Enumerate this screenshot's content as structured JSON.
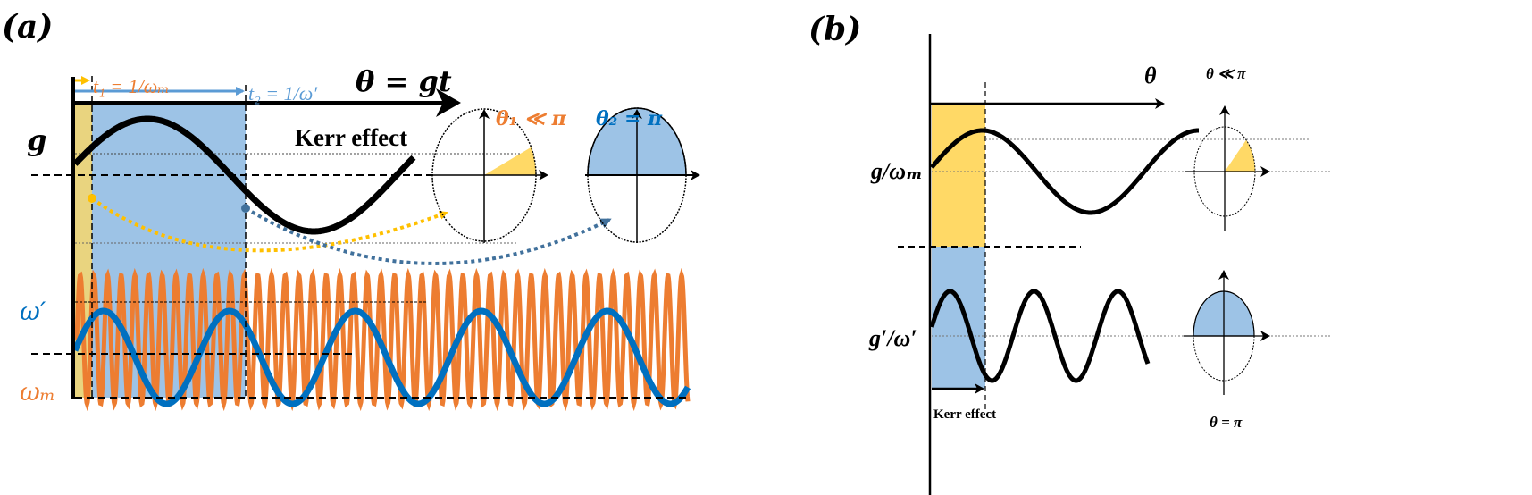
{
  "colors": {
    "yellow_region_a": "#E9D47F",
    "yellow_region_b": "#FFD966",
    "blue_region": "#9DC3E6",
    "orange": "#ED7D31",
    "blue": "#0070C0",
    "yellow_arrow": "#FFC000",
    "blue_arrow": "#5B9BD5",
    "steel_blue": "#41719C"
  },
  "panel_a": {
    "label": "(a)",
    "t1_label": "t₁ = 1/ωₘ",
    "t2_label": "t₂ = 1/ω′",
    "axis_label": "θ = gt",
    "kerr_label": "Kerr effect",
    "g_label": "g",
    "omega_prime_label": "ω′",
    "omega_m_label": "ωₘ",
    "circle1_label": "θ₁ ≪ π",
    "circle2_label": "θ₂ = π"
  },
  "panel_b": {
    "label": "(b)",
    "axis_label": "θ",
    "upper_label": "g/ωₘ",
    "lower_label": "g′/ω′",
    "kerr_label": "Kerr effect",
    "circle1_label": "θ ≪ π",
    "circle2_label": "θ = π"
  }
}
